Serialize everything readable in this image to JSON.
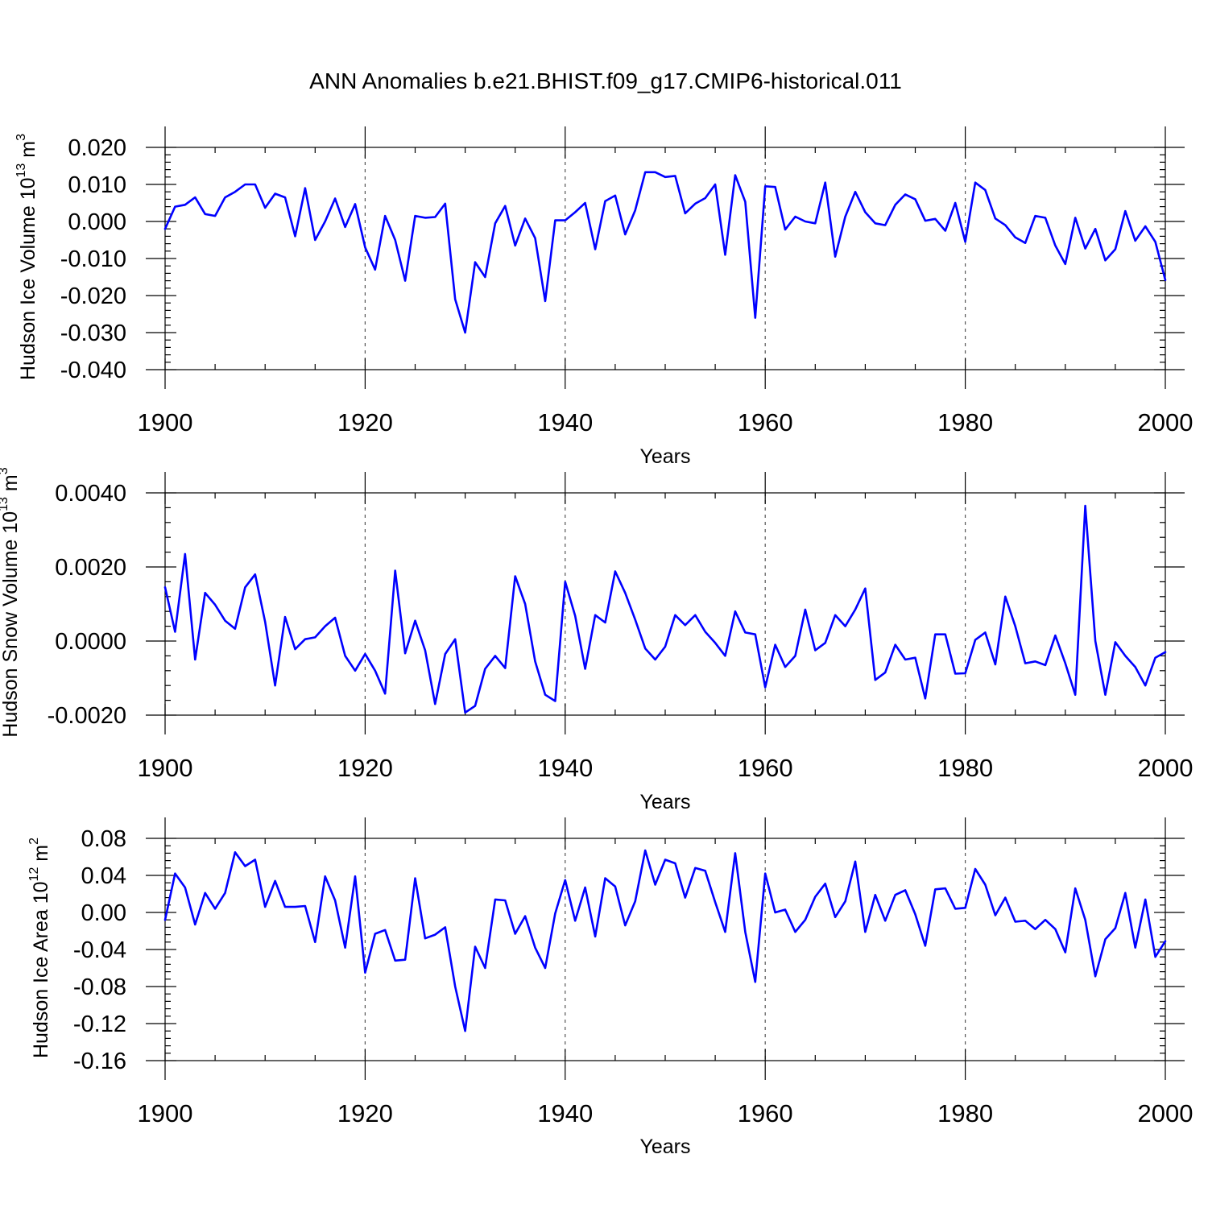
{
  "title": "ANN Anomalies b.e21.BHIST.f09_g17.CMIP6-historical.011",
  "colors": {
    "series": "#0000ff",
    "axes": "#000000",
    "grid": "#555555"
  },
  "chart_data": [
    {
      "type": "line",
      "name": "ice-volume",
      "title": "",
      "xlabel": "Years",
      "ylabel": "Hudson Ice Volume 10",
      "ylabel_exponent": "13",
      "ylabel_unit": " m",
      "ylabel_unit_exponent": "3",
      "xlim": [
        1900,
        2000
      ],
      "ylim": [
        -0.04,
        0.02
      ],
      "xticks": [
        1900,
        1920,
        1940,
        1960,
        1980,
        2000
      ],
      "xtick_labels": [
        "1900",
        "1920",
        "1940",
        "1960",
        "1980",
        "2000"
      ],
      "yticks": [
        0.02,
        0.01,
        0.0,
        -0.01,
        -0.02,
        -0.03,
        -0.04
      ],
      "ytick_labels": [
        "0.020",
        "0.010",
        "0.000",
        "-0.010",
        "-0.020",
        "-0.030",
        "-0.040"
      ],
      "grid": "x-dashed",
      "x_start": 1900,
      "values": [
        -0.002,
        0.004,
        0.0045,
        0.0065,
        0.002,
        0.0015,
        0.0065,
        0.008,
        0.01,
        0.01,
        0.0037,
        0.0075,
        0.0065,
        -0.004,
        0.009,
        -0.005,
        0.0,
        0.0062,
        -0.0015,
        0.0047,
        -0.007,
        -0.013,
        0.0015,
        -0.005,
        -0.016,
        0.0015,
        0.001,
        0.0012,
        0.0048,
        -0.021,
        -0.03,
        -0.011,
        -0.015,
        -0.0005,
        0.0042,
        -0.0065,
        0.0008,
        -0.0045,
        -0.0215,
        0.0003,
        0.0003,
        0.0025,
        0.005,
        -0.0075,
        0.0055,
        0.007,
        -0.0035,
        0.003,
        0.0133,
        0.0133,
        0.012,
        0.0123,
        0.0022,
        0.0048,
        0.0063,
        0.01,
        -0.009,
        0.0125,
        0.0053,
        -0.026,
        0.0095,
        0.0093,
        -0.0022,
        0.0013,
        0.0,
        -0.0005,
        0.0105,
        -0.0095,
        0.0013,
        0.008,
        0.0025,
        -0.0005,
        -0.001,
        0.0045,
        0.0073,
        0.006,
        0.0002,
        0.0007,
        -0.0025,
        0.005,
        -0.0055,
        0.0105,
        0.0085,
        0.0008,
        -0.001,
        -0.0043,
        -0.0058,
        0.0015,
        0.001,
        -0.0065,
        -0.0115,
        0.001,
        -0.0073,
        -0.002,
        -0.0105,
        -0.0075,
        0.0028,
        -0.0052,
        -0.0013,
        -0.0055,
        -0.0158
      ]
    },
    {
      "type": "line",
      "name": "snow-volume",
      "title": "",
      "xlabel": "Years",
      "ylabel": "Hudson Snow Volume 10",
      "ylabel_exponent": "13",
      "ylabel_unit": " m",
      "ylabel_unit_exponent": "3",
      "xlim": [
        1900,
        2000
      ],
      "ylim": [
        -0.002,
        0.004
      ],
      "xticks": [
        1900,
        1920,
        1940,
        1960,
        1980,
        2000
      ],
      "xtick_labels": [
        "1900",
        "1920",
        "1940",
        "1960",
        "1980",
        "2000"
      ],
      "yticks": [
        0.004,
        0.002,
        0.0,
        -0.002
      ],
      "ytick_labels": [
        "0.0040",
        "0.0020",
        "0.0000",
        "-0.0020"
      ],
      "grid": "x-dashed",
      "x_start": 1900,
      "values": [
        0.00145,
        0.00025,
        0.00235,
        -0.0005,
        0.0013,
        0.00098,
        0.00055,
        0.00033,
        0.00145,
        0.0018,
        0.00052,
        -0.0012,
        0.00065,
        -0.00022,
        5e-05,
        0.0001,
        0.0004,
        0.00063,
        -0.0004,
        -0.0008,
        -0.00035,
        -0.0008,
        -0.00142,
        0.0019,
        -0.00033,
        0.00055,
        -0.00025,
        -0.0017,
        -0.00035,
        5e-05,
        -0.00193,
        -0.00175,
        -0.00075,
        -0.0004,
        -0.00073,
        0.00175,
        0.001,
        -0.00055,
        -0.00145,
        -0.00162,
        0.0016,
        0.00068,
        -0.00075,
        0.0007,
        0.0005,
        0.00188,
        0.0013,
        0.00058,
        -0.0002,
        -0.0005,
        -0.00015,
        0.0007,
        0.00043,
        0.0007,
        0.00025,
        -5e-05,
        -0.0004,
        0.0008,
        0.00023,
        0.00018,
        -0.00125,
        -0.0001,
        -0.0007,
        -0.0004,
        0.00085,
        -0.00025,
        -5e-05,
        0.0007,
        0.0004,
        0.00085,
        0.00142,
        -0.00105,
        -0.00085,
        -0.0001,
        -0.0005,
        -0.00045,
        -0.00155,
        0.00018,
        0.00018,
        -0.00088,
        -0.00087,
        3e-05,
        0.00023,
        -0.00063,
        0.0012,
        0.0004,
        -0.0006,
        -0.00055,
        -0.00065,
        0.00015,
        -0.0006,
        -0.00145,
        0.00365,
        0.0,
        -0.00145,
        -3e-05,
        -0.0004,
        -0.0007,
        -0.0012,
        -0.00045,
        -0.0003
      ]
    },
    {
      "type": "line",
      "name": "ice-area",
      "title": "",
      "xlabel": "Years",
      "ylabel": "Hudson Ice Area 10",
      "ylabel_exponent": "12",
      "ylabel_unit": " m",
      "ylabel_unit_exponent": "2",
      "xlim": [
        1900,
        2000
      ],
      "ylim": [
        -0.16,
        0.08
      ],
      "xticks": [
        1900,
        1920,
        1940,
        1960,
        1980,
        2000
      ],
      "xtick_labels": [
        "1900",
        "1920",
        "1940",
        "1960",
        "1980",
        "2000"
      ],
      "yticks": [
        0.08,
        0.04,
        0.0,
        -0.04,
        -0.08,
        -0.12,
        -0.16
      ],
      "ytick_labels": [
        "0.08",
        "0.04",
        "0.00",
        "-0.04",
        "-0.08",
        "-0.12",
        "-0.16"
      ],
      "grid": "x-dashed",
      "x_start": 1900,
      "values": [
        -0.008,
        0.042,
        0.027,
        -0.013,
        0.021,
        0.004,
        0.021,
        0.065,
        0.05,
        0.057,
        0.006,
        0.034,
        0.006,
        0.006,
        0.007,
        -0.032,
        0.039,
        0.013,
        -0.038,
        0.039,
        -0.065,
        -0.023,
        -0.019,
        -0.052,
        -0.051,
        0.037,
        -0.028,
        -0.024,
        -0.016,
        -0.08,
        -0.128,
        -0.037,
        -0.06,
        0.014,
        0.013,
        -0.023,
        -0.004,
        -0.038,
        -0.06,
        -0.001,
        0.035,
        -0.009,
        0.027,
        -0.026,
        0.037,
        0.028,
        -0.014,
        0.012,
        0.067,
        0.03,
        0.057,
        0.053,
        0.016,
        0.048,
        0.045,
        0.011,
        -0.021,
        0.064,
        -0.021,
        -0.075,
        0.042,
        0.0,
        0.003,
        -0.021,
        -0.008,
        0.017,
        0.031,
        -0.005,
        0.012,
        0.055,
        -0.021,
        0.019,
        -0.009,
        0.019,
        0.024,
        -0.002,
        -0.036,
        0.025,
        0.026,
        0.004,
        0.005,
        0.047,
        0.03,
        -0.003,
        0.016,
        -0.01,
        -0.009,
        -0.018,
        -0.008,
        -0.018,
        -0.043,
        0.026,
        -0.008,
        -0.069,
        -0.029,
        -0.017,
        0.021,
        -0.038,
        0.014,
        -0.048,
        -0.031
      ]
    }
  ]
}
